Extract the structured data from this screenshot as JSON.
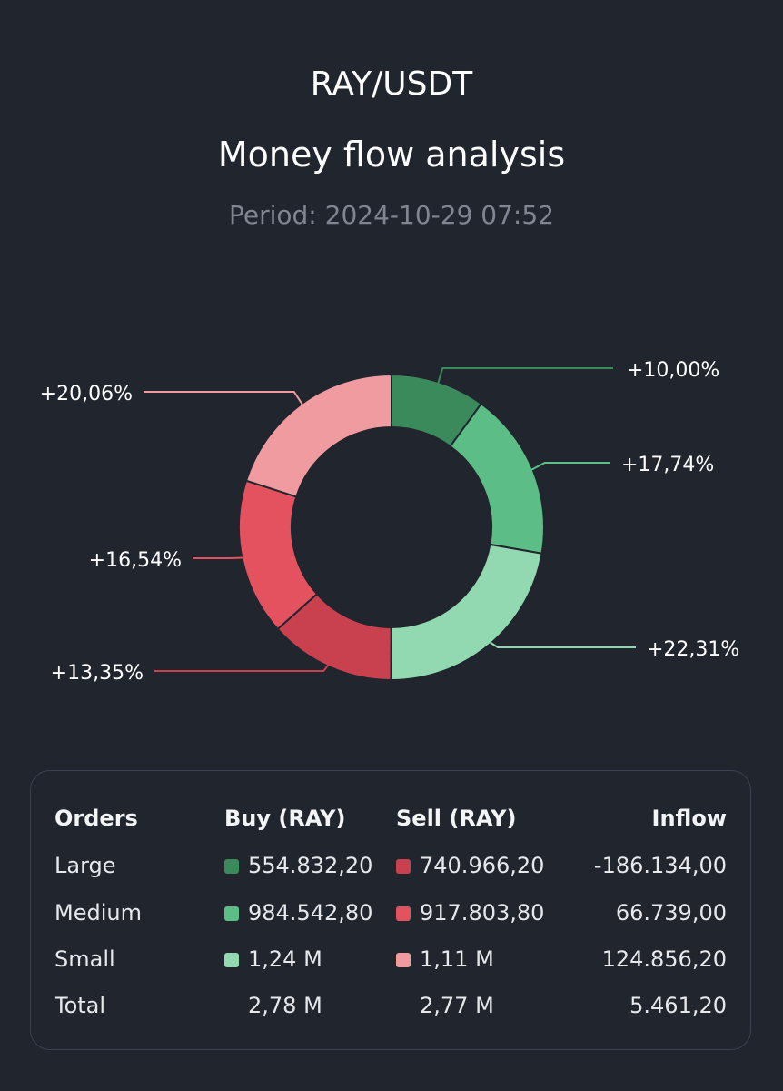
{
  "header": {
    "pair": "RAY/USDT",
    "title": "Money flow analysis",
    "period_label": "Period:",
    "period_value": "2024-10-29 07:52"
  },
  "chart_data": {
    "type": "pie",
    "donut": true,
    "slices": [
      {
        "label": "+10,00%",
        "value": 10.0,
        "color": "#3a8a5c"
      },
      {
        "label": "+17,74%",
        "value": 17.74,
        "color": "#5dbd86"
      },
      {
        "label": "+22,31%",
        "value": 22.31,
        "color": "#92d8b0"
      },
      {
        "label": "+13,35%",
        "value": 13.35,
        "color": "#c9404f"
      },
      {
        "label": "+16,54%",
        "value": 16.54,
        "color": "#e4525f"
      },
      {
        "label": "+20,06%",
        "value": 20.06,
        "color": "#f09ba0"
      }
    ]
  },
  "table": {
    "headers": {
      "orders": "Orders",
      "buy": "Buy (RAY)",
      "sell": "Sell (RAY)",
      "inflow": "Inflow"
    },
    "rows": [
      {
        "order": "Large",
        "buy": "554.832,20",
        "sell": "740.966,20",
        "inflow": "-186.134,00",
        "buy_color": "#3a8a5c",
        "sell_color": "#c9404f"
      },
      {
        "order": "Medium",
        "buy": "984.542,80",
        "sell": "917.803,80",
        "inflow": "66.739,00",
        "buy_color": "#5dbd86",
        "sell_color": "#e4525f"
      },
      {
        "order": "Small",
        "buy": "1,24 M",
        "sell": "1,11 M",
        "inflow": "124.856,20",
        "buy_color": "#92d8b0",
        "sell_color": "#f09ba0"
      }
    ],
    "total": {
      "order": "Total",
      "buy": "2,78 M",
      "sell": "2,77 M",
      "inflow": "5.461,20"
    }
  }
}
